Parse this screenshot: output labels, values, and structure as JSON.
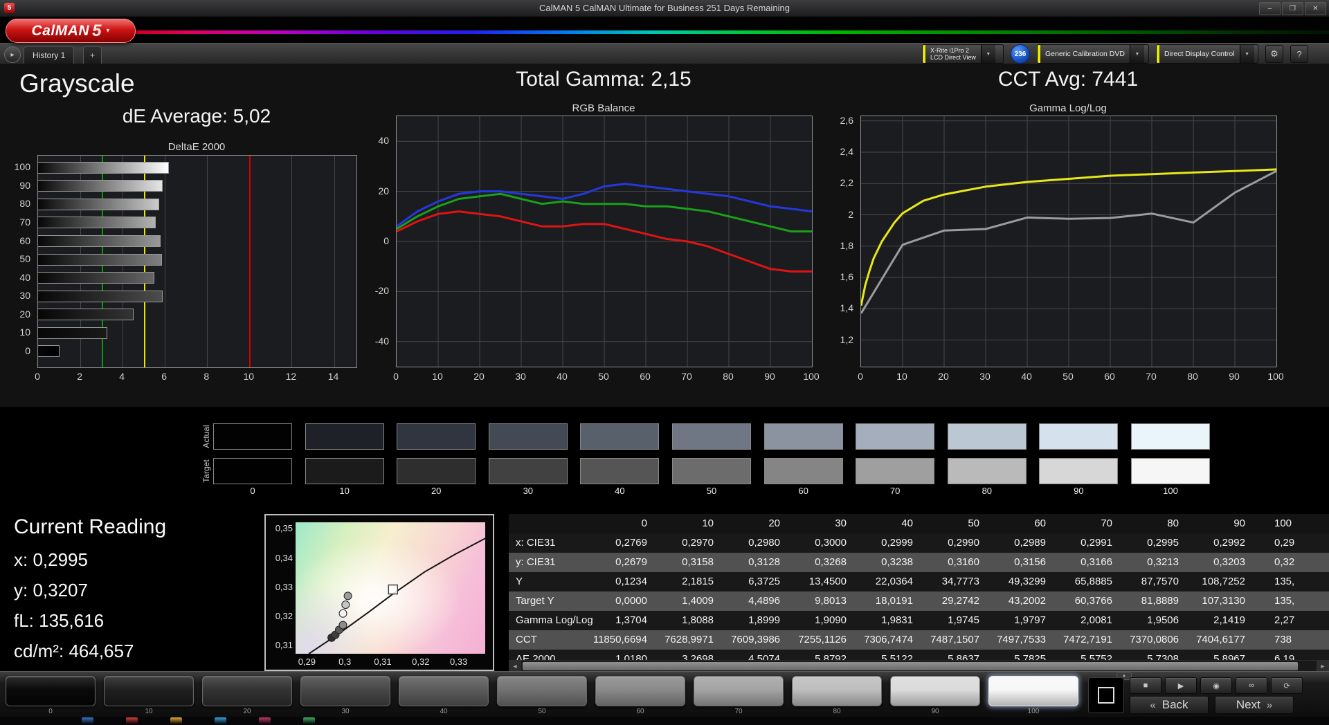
{
  "window": {
    "title": "CalMAN 5 CalMAN Ultimate for Business 251 Days Remaining"
  },
  "header": {
    "logo_text": "CalMAN",
    "logo_number": "5"
  },
  "toolbar": {
    "history_tab": "History 1",
    "add_tab": "+",
    "meter": {
      "line1": "X-Rite i1Pro 2",
      "line2": "LCD Direct View"
    },
    "badge": "236",
    "source": "Generic Calibration DVD",
    "display_control": "Direct Display Control"
  },
  "summary": {
    "grayscale_title": "Grayscale",
    "de_average": "dE Average: 5,02",
    "total_gamma": "Total Gamma: 2,15",
    "cct_avg": "CCT Avg: 7441"
  },
  "chart_data": [
    {
      "type": "bar",
      "title": "DeltaE 2000",
      "orientation": "horizontal",
      "categories": [
        "100",
        "90",
        "80",
        "70",
        "60",
        "50",
        "40",
        "30",
        "20",
        "10",
        "0"
      ],
      "values": [
        6.19,
        5.9,
        5.73,
        5.58,
        5.78,
        5.86,
        5.51,
        5.88,
        4.51,
        3.27,
        1.02
      ],
      "xlim": [
        0,
        15
      ],
      "x_ticks": [
        0,
        2,
        4,
        6,
        8,
        10,
        12,
        14
      ],
      "reference_lines": [
        {
          "name": "green-target",
          "value": 3,
          "color": "#00a000"
        },
        {
          "name": "yellow-target",
          "value": 5,
          "color": "#e8e800"
        },
        {
          "name": "red-limit",
          "value": 10,
          "color": "#d40000"
        }
      ]
    },
    {
      "type": "line",
      "title": "RGB Balance",
      "xlim": [
        0,
        100
      ],
      "ylim": [
        -50,
        50
      ],
      "x_grid": [
        10,
        20,
        30,
        40,
        50,
        60,
        70,
        80,
        90
      ],
      "y_grid": [
        40,
        20,
        0,
        -20,
        -40
      ],
      "y_ticks": [
        {
          "v": 40,
          "label": "40"
        },
        {
          "v": 20,
          "label": "20"
        },
        {
          "v": 0,
          "label": "0"
        },
        {
          "v": -20,
          "label": "-20"
        },
        {
          "v": -40,
          "label": "-40"
        }
      ],
      "x_ticks": [
        {
          "v": 0,
          "label": "0"
        },
        {
          "v": 10,
          "label": "10"
        },
        {
          "v": 20,
          "label": "20"
        },
        {
          "v": 30,
          "label": "30"
        },
        {
          "v": 40,
          "label": "40"
        },
        {
          "v": 50,
          "label": "50"
        },
        {
          "v": 60,
          "label": "60"
        },
        {
          "v": 70,
          "label": "70"
        },
        {
          "v": 80,
          "label": "80"
        },
        {
          "v": 90,
          "label": "90"
        },
        {
          "v": 100,
          "label": "100"
        }
      ],
      "series": [
        {
          "name": "red-balance",
          "color": "#dd1414",
          "x": [
            0,
            5,
            10,
            15,
            20,
            25,
            30,
            35,
            40,
            45,
            50,
            55,
            60,
            65,
            70,
            75,
            80,
            85,
            90,
            95,
            100
          ],
          "values": [
            4,
            8,
            11,
            12,
            11,
            10,
            8,
            6,
            6,
            7,
            7,
            5,
            3,
            1,
            0,
            -2,
            -5,
            -8,
            -11,
            -12,
            -12
          ]
        },
        {
          "name": "green-balance",
          "color": "#1aa01a",
          "x": [
            0,
            5,
            10,
            15,
            20,
            25,
            30,
            35,
            40,
            45,
            50,
            55,
            60,
            65,
            70,
            75,
            80,
            85,
            90,
            95,
            100
          ],
          "values": [
            5,
            10,
            14,
            17,
            18,
            19,
            17,
            15,
            16,
            15,
            15,
            15,
            14,
            14,
            13,
            12,
            10,
            8,
            6,
            4,
            4
          ]
        },
        {
          "name": "blue-balance",
          "color": "#2438dd",
          "x": [
            0,
            5,
            10,
            15,
            20,
            25,
            30,
            35,
            40,
            45,
            50,
            55,
            60,
            65,
            70,
            75,
            80,
            85,
            90,
            95,
            100
          ],
          "values": [
            6,
            12,
            16,
            19,
            20,
            20,
            19,
            18,
            17,
            19,
            22,
            23,
            22,
            21,
            20,
            19,
            18,
            16,
            14,
            13,
            12
          ]
        }
      ]
    },
    {
      "type": "line",
      "title": "Gamma Log/Log",
      "xlim": [
        0,
        100
      ],
      "ylim": [
        1.03,
        2.63
      ],
      "x_grid": [
        10,
        20,
        30,
        40,
        50,
        60,
        70,
        80,
        90
      ],
      "y_grid": [
        2.6,
        2.4,
        2.2,
        2.0,
        1.8,
        1.6,
        1.4,
        1.2
      ],
      "y_ticks": [
        {
          "v": 2.6,
          "label": "2,6"
        },
        {
          "v": 2.4,
          "label": "2,4"
        },
        {
          "v": 2.2,
          "label": "2,2"
        },
        {
          "v": 2.0,
          "label": "2"
        },
        {
          "v": 1.8,
          "label": "1,8"
        },
        {
          "v": 1.6,
          "label": "1,6"
        },
        {
          "v": 1.4,
          "label": "1,4"
        },
        {
          "v": 1.2,
          "label": "1,2"
        }
      ],
      "x_ticks": [
        {
          "v": 0,
          "label": "0"
        },
        {
          "v": 10,
          "label": "10"
        },
        {
          "v": 20,
          "label": "20"
        },
        {
          "v": 30,
          "label": "30"
        },
        {
          "v": 40,
          "label": "40"
        },
        {
          "v": 50,
          "label": "50"
        },
        {
          "v": 60,
          "label": "60"
        },
        {
          "v": 70,
          "label": "70"
        },
        {
          "v": 80,
          "label": "80"
        },
        {
          "v": 90,
          "label": "90"
        },
        {
          "v": 100,
          "label": "100"
        }
      ],
      "series": [
        {
          "name": "target-gamma",
          "color": "#e8e818",
          "x": [
            0,
            1,
            2,
            3,
            5,
            8,
            10,
            15,
            20,
            30,
            40,
            50,
            60,
            70,
            80,
            90,
            100
          ],
          "values": [
            1.42,
            1.55,
            1.64,
            1.72,
            1.83,
            1.95,
            2.01,
            2.09,
            2.13,
            2.18,
            2.21,
            2.23,
            2.25,
            2.26,
            2.27,
            2.28,
            2.29
          ]
        },
        {
          "name": "measured-gamma",
          "color": "#9c9c9c",
          "x": [
            0,
            10,
            20,
            30,
            40,
            50,
            60,
            70,
            80,
            90,
            100
          ],
          "values": [
            1.3704,
            1.8088,
            1.8999,
            1.909,
            1.9831,
            1.9745,
            1.9797,
            2.0081,
            1.9506,
            2.1419,
            2.28
          ]
        }
      ]
    },
    {
      "type": "scatter",
      "title": "",
      "xlim": [
        0.287,
        0.337
      ],
      "ylim": [
        0.307,
        0.352
      ],
      "x_ticks": [
        {
          "v": 0.29,
          "label": "0,29"
        },
        {
          "v": 0.3,
          "label": "0,3"
        },
        {
          "v": 0.31,
          "label": "0,31"
        },
        {
          "v": 0.32,
          "label": "0,32"
        },
        {
          "v": 0.33,
          "label": "0,33"
        }
      ],
      "y_ticks": [
        {
          "v": 0.35,
          "label": "0,35"
        },
        {
          "v": 0.34,
          "label": "0,34"
        },
        {
          "v": 0.33,
          "label": "0,33"
        },
        {
          "v": 0.32,
          "label": "0,32"
        },
        {
          "v": 0.31,
          "label": "0,31"
        }
      ],
      "locus": [
        [
          0.2905,
          0.307
        ],
        [
          0.298,
          0.3135
        ],
        [
          0.306,
          0.321
        ],
        [
          0.3127,
          0.3275
        ],
        [
          0.321,
          0.335
        ],
        [
          0.329,
          0.341
        ],
        [
          0.337,
          0.3465
        ]
      ],
      "target_point": {
        "x": 0.3127,
        "y": 0.329
      },
      "points": [
        {
          "x": 0.2965,
          "y": 0.3125,
          "color": "#303030"
        },
        {
          "x": 0.2975,
          "y": 0.3135,
          "color": "#3e3e3e"
        },
        {
          "x": 0.2985,
          "y": 0.3152,
          "color": "#5a5a5a"
        },
        {
          "x": 0.2995,
          "y": 0.3168,
          "color": "#8c8c8c"
        },
        {
          "x": 0.2995,
          "y": 0.3208,
          "color": "#f2f2f2"
        },
        {
          "x": 0.3002,
          "y": 0.3238,
          "color": "#c6c6c6"
        },
        {
          "x": 0.3008,
          "y": 0.3268,
          "color": "#9c9c9c"
        }
      ]
    }
  ],
  "swatches": {
    "row_labels": [
      "Actual",
      "Target"
    ],
    "levels": [
      "0",
      "10",
      "20",
      "30",
      "40",
      "50",
      "60",
      "70",
      "80",
      "90",
      "100"
    ],
    "actual": [
      "#020202",
      "#1e2127",
      "#31353f",
      "#434a55",
      "#58606b",
      "#6e7783",
      "#8a939f",
      "#a5aebc",
      "#bcc7d4",
      "#d5e2ee",
      "#eaf4fb"
    ],
    "target": [
      "#010101",
      "#1b1b1b",
      "#2e2e2e",
      "#414141",
      "#555555",
      "#6c6c6c",
      "#858585",
      "#9f9f9f",
      "#bababa",
      "#d7d7d7",
      "#f6f6f6"
    ]
  },
  "current_reading": {
    "title": "Current Reading",
    "x": "x: 0,2995",
    "y": "y: 0,3207",
    "fl": "fL: 135,616",
    "cdm2": "cd/m²: 464,657"
  },
  "table": {
    "corner": "",
    "columns": [
      "0",
      "10",
      "20",
      "30",
      "40",
      "50",
      "60",
      "70",
      "80",
      "90",
      "100"
    ],
    "rows": [
      {
        "label": "x: CIE31",
        "values": [
          "0,2769",
          "0,2970",
          "0,2980",
          "0,3000",
          "0,2999",
          "0,2990",
          "0,2989",
          "0,2991",
          "0,2995",
          "0,2992",
          "0,29"
        ]
      },
      {
        "label": "y: CIE31",
        "values": [
          "0,2679",
          "0,3158",
          "0,3128",
          "0,3268",
          "0,3238",
          "0,3160",
          "0,3156",
          "0,3166",
          "0,3213",
          "0,3203",
          "0,32"
        ]
      },
      {
        "label": "Y",
        "values": [
          "0,1234",
          "2,1815",
          "6,3725",
          "13,4500",
          "22,0364",
          "34,7773",
          "49,3299",
          "65,8885",
          "87,7570",
          "108,7252",
          "135,"
        ]
      },
      {
        "label": "Target Y",
        "values": [
          "0,0000",
          "1,4009",
          "4,4896",
          "9,8013",
          "18,0191",
          "29,2742",
          "43,2002",
          "60,3766",
          "81,8889",
          "107,3130",
          "135,"
        ]
      },
      {
        "label": "Gamma Log/Log",
        "values": [
          "1,3704",
          "1,8088",
          "1,8999",
          "1,9090",
          "1,9831",
          "1,9745",
          "1,9797",
          "2,0081",
          "1,9506",
          "2,1419",
          "2,27"
        ]
      },
      {
        "label": "CCT",
        "values": [
          "11850,6694",
          "7628,9971",
          "7609,3986",
          "7255,1126",
          "7306,7474",
          "7487,1507",
          "7497,7533",
          "7472,7191",
          "7370,0806",
          "7404,6177",
          "738"
        ]
      },
      {
        "label": "ΔE 2000",
        "values": [
          "1,0180",
          "3,2698",
          "4,5074",
          "5,8792",
          "5,5122",
          "5,8637",
          "5,7825",
          "5,5752",
          "5,7308",
          "5,8967",
          "6,19"
        ]
      }
    ]
  },
  "bottom_bar": {
    "patches": [
      {
        "label": "0",
        "color": "#050505"
      },
      {
        "label": "10",
        "color": "#1b1b1b"
      },
      {
        "label": "20",
        "color": "#2f2f2f"
      },
      {
        "label": "30",
        "color": "#434343"
      },
      {
        "label": "40",
        "color": "#585858"
      },
      {
        "label": "50",
        "color": "#6f6f6f"
      },
      {
        "label": "60",
        "color": "#888888"
      },
      {
        "label": "70",
        "color": "#a2a2a2"
      },
      {
        "label": "80",
        "color": "#bdbdbd"
      },
      {
        "label": "90",
        "color": "#dadada"
      },
      {
        "label": "100",
        "color": "#f7f7f7",
        "selected": true
      }
    ],
    "back": "Back",
    "next": "Next"
  },
  "taskbar": {
    "icon_colors": [
      "#3478c8",
      "#d04038",
      "#e0a83a",
      "#3aa0e0",
      "#c03a66",
      "#40b060"
    ]
  },
  "icons": {
    "logo_caret": "▾",
    "dropdown_arrow": "▼",
    "nav_arrow": "▸",
    "gear": "⚙",
    "help": "?",
    "minimize": "–",
    "maximize": "❐",
    "close": "✕",
    "stop": "■",
    "play": "▶",
    "measure": "◉",
    "continuous": "∞",
    "refresh": "⟳",
    "back_chevron": "«",
    "next_chevron": "»",
    "scroll_left": "◄",
    "scroll_right": "►",
    "collapse": "▲"
  }
}
